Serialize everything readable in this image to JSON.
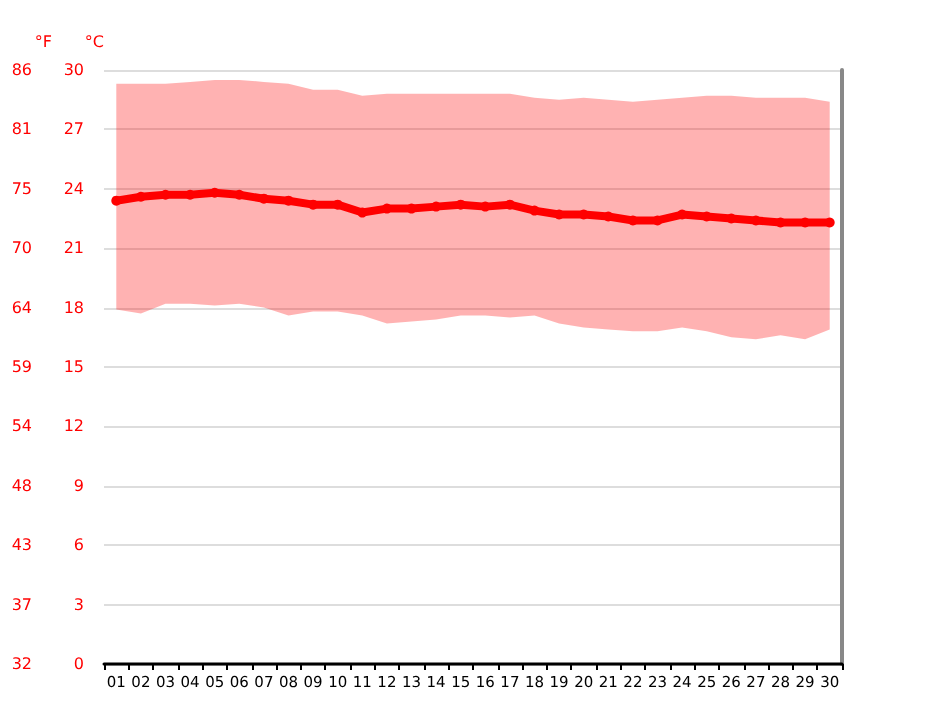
{
  "chart_data": {
    "type": "line",
    "categories": [
      "01",
      "02",
      "03",
      "04",
      "05",
      "06",
      "07",
      "08",
      "09",
      "10",
      "11",
      "12",
      "13",
      "14",
      "15",
      "16",
      "17",
      "18",
      "19",
      "20",
      "21",
      "22",
      "23",
      "24",
      "25",
      "26",
      "27",
      "28",
      "29",
      "30"
    ],
    "series": [
      {
        "color": "#ff0000",
        "values": [
          23.4,
          23.6,
          23.7,
          23.7,
          23.8,
          23.7,
          23.5,
          23.4,
          23.2,
          23.2,
          22.8,
          23.0,
          23.0,
          23.1,
          23.2,
          23.1,
          23.2,
          22.9,
          22.7,
          22.7,
          22.6,
          22.4,
          22.4,
          22.7,
          22.6,
          22.5,
          22.4,
          22.3,
          22.3,
          22.3
        ],
        "lower": [
          17.9,
          17.7,
          18.2,
          18.2,
          18.1,
          18.2,
          18.0,
          17.6,
          17.8,
          17.8,
          17.6,
          17.2,
          17.3,
          17.4,
          17.6,
          17.6,
          17.5,
          17.6,
          17.2,
          17.0,
          16.9,
          16.8,
          16.8,
          17.0,
          16.8,
          16.5,
          16.4,
          16.6,
          16.4,
          16.9
        ],
        "upper": [
          29.3,
          29.3,
          29.3,
          29.4,
          29.5,
          29.5,
          29.4,
          29.3,
          29.0,
          29.0,
          28.7,
          28.8,
          28.8,
          28.8,
          28.8,
          28.8,
          28.8,
          28.6,
          28.5,
          28.6,
          28.5,
          28.4,
          28.5,
          28.6,
          28.7,
          28.7,
          28.6,
          28.6,
          28.6,
          28.4
        ]
      }
    ],
    "ylabel": "°C",
    "y2label": "°F",
    "ylim": [
      0,
      30
    ],
    "yticks": [
      0,
      3,
      6,
      9,
      12,
      15,
      18,
      21,
      24,
      27,
      30
    ],
    "y2lim": [
      32,
      86
    ],
    "y2ticks": [
      32,
      {
        "value": 37.4,
        "label": "37"
      },
      {
        "value": 42.8,
        "label": "43"
      },
      {
        "value": 48.2,
        "label": "48"
      },
      {
        "value": 53.6,
        "label": "54"
      },
      59,
      {
        "value": 64.4,
        "label": "64"
      },
      {
        "value": 69.8,
        "label": "70"
      },
      {
        "value": 75.2,
        "label": "75"
      },
      {
        "value": 80.6,
        "label": "81"
      },
      86
    ],
    "grid": "y",
    "marker": "circle",
    "line_style": "solid"
  }
}
